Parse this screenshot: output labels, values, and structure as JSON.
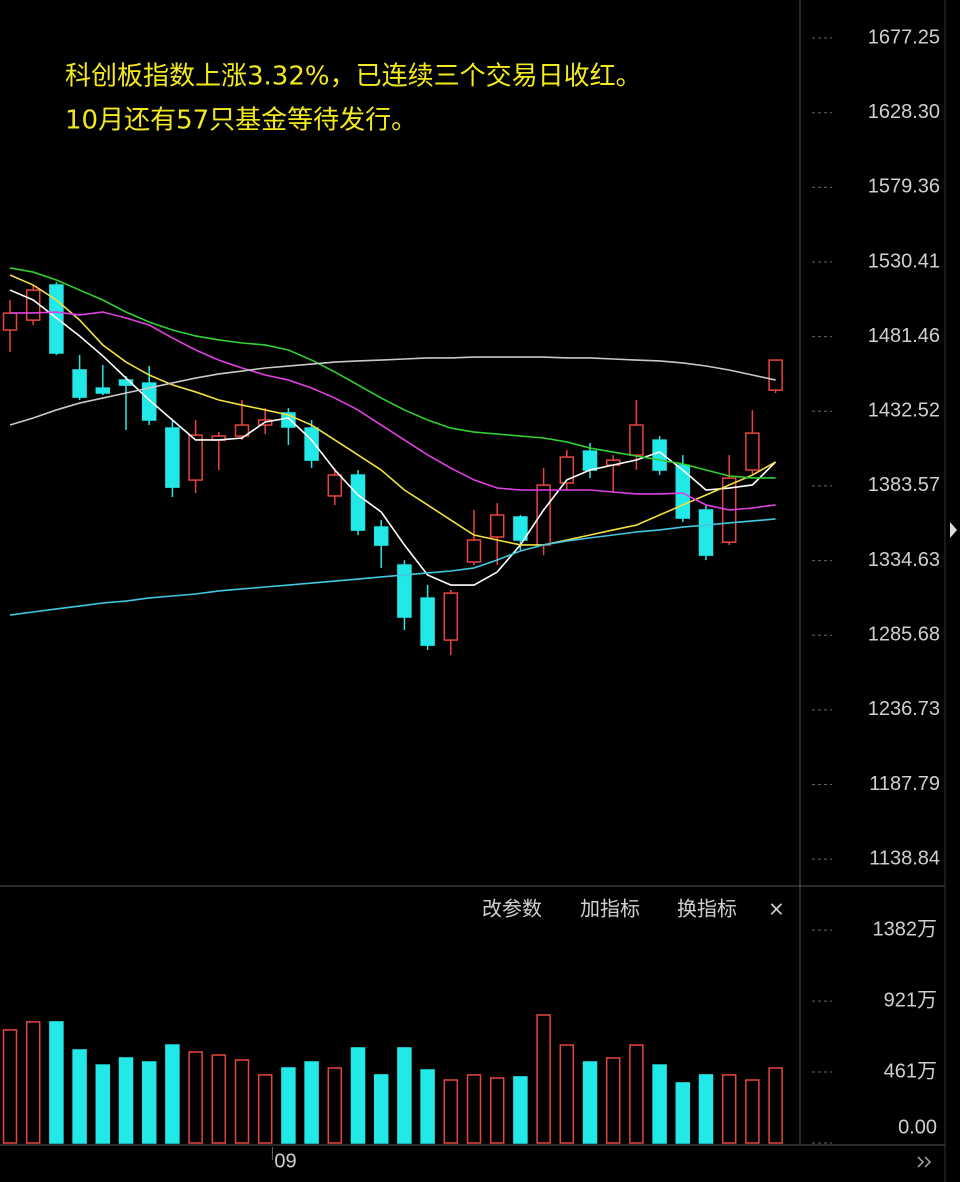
{
  "chart_data": {
    "type": "candlestick",
    "annotation": [
      "科创板指数上涨3.32%，已连续三个交易日收红。",
      "10月还有57只基金等待发行。"
    ],
    "toolbar": [
      "改参数",
      "加指标",
      "换指标",
      "×"
    ],
    "categories": [
      null,
      null,
      null,
      null,
      null,
      null,
      null,
      null,
      null,
      null,
      null,
      null,
      "09",
      null,
      null,
      null,
      null,
      null,
      null,
      null,
      null,
      null,
      null,
      null,
      null,
      null,
      null,
      null,
      null,
      null,
      null,
      null,
      null,
      null
    ],
    "up_color": "#e8453c",
    "down_color": "#22e8e8",
    "open": [
      1485.8,
      1492.3,
      1515.3,
      1459.6,
      1447.7,
      1453.0,
      1451.0,
      1421.5,
      1387.4,
      1413.6,
      1416.3,
      1423.5,
      1431.4,
      1421.5,
      1377.0,
      1390.7,
      1356.6,
      1331.7,
      1310.0,
      1282.5,
      1333.7,
      1350.1,
      1363.2,
      1344.8,
      1385.5,
      1406.4,
      1397.2,
      1403.8,
      1413.6,
      1397.2,
      1367.8,
      1346.7,
      1394.0,
      1446.4
    ],
    "high": [
      1505.4,
      1515.3,
      1517.2,
      1469.4,
      1462.8,
      1455.6,
      1462.2,
      1426.8,
      1426.8,
      1418.9,
      1439.9,
      1434.6,
      1434.6,
      1426.8,
      1395.3,
      1394.0,
      1361.2,
      1334.9,
      1318.6,
      1315.3,
      1367.8,
      1372.3,
      1364.5,
      1395.3,
      1407.1,
      1411.7,
      1403.8,
      1439.9,
      1416.3,
      1403.8,
      1371.0,
      1403.8,
      1433.3,
      1466.1
    ],
    "low": [
      1471.4,
      1489.1,
      1469.4,
      1439.9,
      1443.1,
      1420.2,
      1423.5,
      1376.3,
      1378.9,
      1394.0,
      1413.6,
      1417.6,
      1410.4,
      1395.3,
      1371.0,
      1351.3,
      1329.7,
      1289.1,
      1276.0,
      1272.7,
      1331.7,
      1331.7,
      1341.5,
      1338.2,
      1380.9,
      1388.7,
      1379.5,
      1394.0,
      1390.7,
      1359.9,
      1334.9,
      1344.8,
      1390.7,
      1444.5
    ],
    "close": [
      1496.9,
      1512.0,
      1470.7,
      1441.8,
      1444.5,
      1449.7,
      1426.8,
      1382.8,
      1416.9,
      1416.3,
      1423.5,
      1426.8,
      1422.2,
      1400.5,
      1390.7,
      1354.6,
      1344.8,
      1297.6,
      1279.2,
      1313.3,
      1348.1,
      1364.5,
      1348.1,
      1384.1,
      1402.5,
      1394.0,
      1400.5,
      1423.5,
      1394.0,
      1362.5,
      1338.2,
      1388.7,
      1418.2,
      1466.1
    ],
    "series": [
      {
        "color": "#ffffff",
        "values": [
          1512.0,
          1505.5,
          1493.7,
          1481.9,
          1468.8,
          1454.3,
          1439.9,
          1426.8,
          1413.7,
          1413.7,
          1415.0,
          1425.5,
          1428.1,
          1413.7,
          1394.0,
          1377.6,
          1366.5,
          1344.9,
          1325.2,
          1318.6,
          1318.6,
          1327.1,
          1344.9,
          1367.8,
          1387.5,
          1394.0,
          1397.3,
          1400.6,
          1405.8,
          1394.0,
          1380.9,
          1382.2,
          1384.2,
          1399.3
        ]
      },
      {
        "color": "#f0e040",
        "values": [
          1521.9,
          1515.3,
          1505.5,
          1492.4,
          1476.0,
          1464.8,
          1456.3,
          1449.8,
          1445.2,
          1439.9,
          1436.6,
          1433.4,
          1430.1,
          1423.5,
          1413.7,
          1403.9,
          1394.0,
          1380.9,
          1371.1,
          1361.2,
          1351.4,
          1348.1,
          1344.9,
          1344.9,
          1348.1,
          1351.4,
          1354.7,
          1357.9,
          1364.5,
          1371.1,
          1377.6,
          1384.2,
          1390.7,
          1399.3
        ]
      },
      {
        "color": "#e040e0",
        "values": [
          1497.0,
          1497.0,
          1497.6,
          1495.7,
          1497.6,
          1493.7,
          1489.1,
          1480.6,
          1472.7,
          1466.1,
          1460.9,
          1456.3,
          1453.0,
          1447.8,
          1441.2,
          1433.4,
          1423.5,
          1413.7,
          1403.9,
          1395.3,
          1387.5,
          1382.2,
          1380.9,
          1380.9,
          1380.9,
          1380.9,
          1379.6,
          1378.3,
          1378.3,
          1378.9,
          1371.1,
          1367.8,
          1369.1,
          1371.1
        ]
      },
      {
        "color": "#30d030",
        "values": [
          1526.5,
          1523.8,
          1518.6,
          1512.0,
          1505.5,
          1497.6,
          1491.1,
          1485.8,
          1481.9,
          1479.3,
          1477.3,
          1476.0,
          1472.7,
          1466.1,
          1458.3,
          1449.8,
          1441.2,
          1433.4,
          1426.8,
          1421.5,
          1418.9,
          1417.6,
          1416.3,
          1415.0,
          1412.4,
          1408.4,
          1405.8,
          1403.2,
          1400.6,
          1398.0,
          1394.0,
          1390.1,
          1388.8,
          1388.8
        ]
      },
      {
        "color": "#c8c8c8",
        "values": [
          1423.5,
          1428.1,
          1433.4,
          1437.9,
          1441.2,
          1444.5,
          1447.8,
          1451.1,
          1454.3,
          1457.0,
          1458.9,
          1460.9,
          1462.2,
          1463.5,
          1464.8,
          1465.5,
          1466.1,
          1466.8,
          1467.5,
          1467.5,
          1468.1,
          1468.1,
          1468.1,
          1468.1,
          1467.5,
          1467.5,
          1466.8,
          1466.1,
          1465.5,
          1464.2,
          1462.2,
          1459.6,
          1456.3,
          1453.0
        ]
      },
      {
        "color": "#40c8e0",
        "values": [
          1298.9,
          1300.9,
          1302.9,
          1304.8,
          1306.8,
          1308.1,
          1310.1,
          1311.4,
          1312.7,
          1314.7,
          1316.0,
          1317.3,
          1318.6,
          1319.9,
          1321.2,
          1322.5,
          1323.9,
          1325.2,
          1326.5,
          1327.8,
          1329.8,
          1335.0,
          1340.9,
          1344.9,
          1347.5,
          1349.5,
          1351.4,
          1353.4,
          1354.7,
          1356.6,
          1357.9,
          1359.3,
          1360.6,
          1361.9
        ]
      }
    ],
    "ylim": [
      1121.9,
      1702.2
    ],
    "yticks": [
      1677.25,
      {
        "value": 1628.3,
        "label": "1628.30"
      },
      1579.36,
      1530.41,
      1481.46,
      1432.52,
      1383.57,
      1334.63,
      1285.68,
      1236.73,
      1187.79,
      1138.84
    ],
    "volume": {
      "values": [
        734,
        786,
        786,
        604,
        506,
        552,
        526,
        636,
        591,
        571,
        539,
        442,
        487,
        526,
        487,
        617,
        442,
        617,
        474,
        409,
        442,
        422,
        429,
        831,
        636,
        526,
        552,
        636,
        506,
        390,
        442,
        442,
        409,
        487
      ],
      "y2lim": [
        0,
        1610
      ],
      "y2ticks": [
        {
          "value": 1382,
          "label": "1382万"
        },
        {
          "value": 921,
          "label": "921万"
        },
        {
          "value": 461,
          "label": "461万"
        },
        {
          "value": 0,
          "label": "0.00"
        }
      ]
    }
  }
}
